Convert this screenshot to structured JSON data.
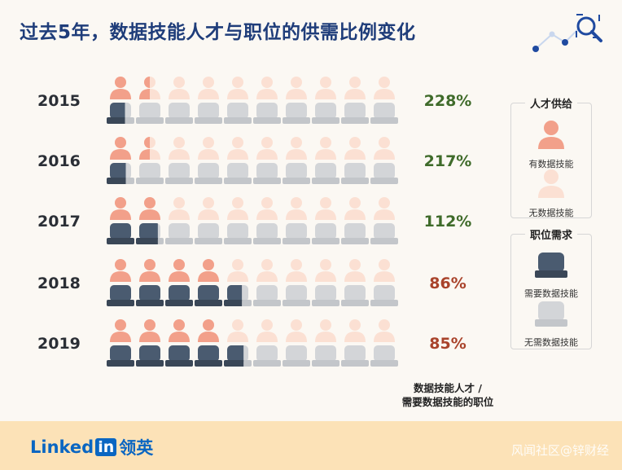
{
  "header": {
    "title": "过去5年，数据技能人才与职位的供需比例变化"
  },
  "chart_data": {
    "type": "pictogram",
    "categories": [
      "2015",
      "2016",
      "2017",
      "2018",
      "2019"
    ],
    "series": [
      {
        "name": "有数据技能",
        "values": [
          1.5,
          1.5,
          2,
          4,
          4
        ]
      },
      {
        "name": "需要数据技能",
        "values": [
          0.66,
          0.69,
          1.79,
          4.65,
          4.71
        ]
      }
    ],
    "ratio_labels": [
      "228%",
      "217%",
      "112%",
      "86%",
      "85%"
    ],
    "ratio_values": [
      228,
      217,
      112,
      86,
      85
    ],
    "units_per_row": 10,
    "colors": {
      "supply_with": "#f2a08a",
      "supply_without": "#fbe0d3",
      "demand_with": "#4a5b70",
      "demand_without": "#d3d5d8",
      "ratio_high": "#3f6b2a",
      "ratio_low": "#a9432b"
    }
  },
  "legend": {
    "supply": {
      "title": "人才供给",
      "with": "有数据技能",
      "without": "无数据技能"
    },
    "demand": {
      "title": "职位需求",
      "with": "需要数据技能",
      "without": "无需数据技能"
    }
  },
  "footnote": {
    "line1": "数据技能人才 /",
    "line2": "需要数据技能的职位"
  },
  "footer": {
    "brand_en": "Linked",
    "brand_in": "in",
    "brand_cn": "领英",
    "watermark": "风闻社区@锌财经"
  }
}
